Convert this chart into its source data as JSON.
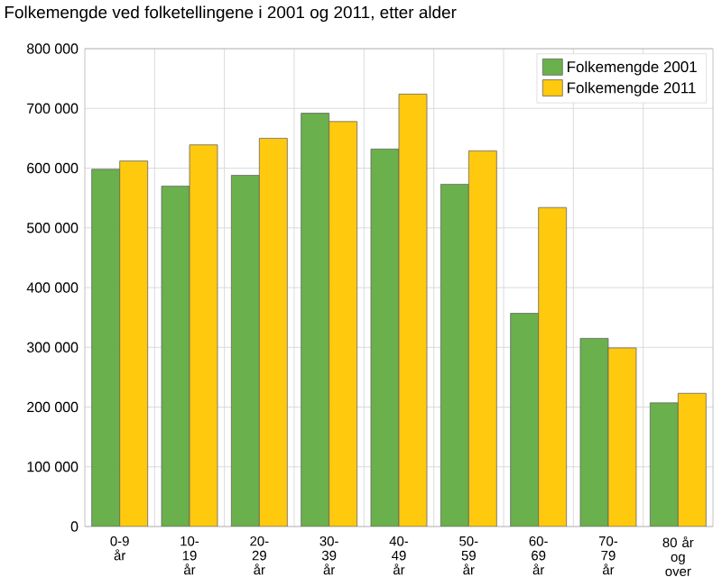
{
  "chart_data": {
    "type": "bar",
    "title": "Folkemengde ved folketellingene i 2001 og 2011, etter alder",
    "categories": [
      "0-9 år",
      "10-19 år",
      "20-29 år",
      "30-39 år",
      "40-49 år",
      "50-59 år",
      "60-69 år",
      "70-79 år",
      "80 år og over"
    ],
    "series": [
      {
        "name": "Folkemengde 2001",
        "color": "#6ab04c",
        "values": [
          598000,
          570000,
          588000,
          692000,
          632000,
          573000,
          357000,
          315000,
          207000
        ]
      },
      {
        "name": "Folkemengde 2011",
        "color": "#ffc90e",
        "values": [
          612000,
          639000,
          650000,
          678000,
          724000,
          629000,
          534000,
          299000,
          223000
        ]
      }
    ],
    "ylim": [
      0,
      800000
    ],
    "yticks": [
      {
        "value": 0,
        "label": "0"
      },
      {
        "value": 100000,
        "label": "100 000"
      },
      {
        "value": 200000,
        "label": "200 000"
      },
      {
        "value": 300000,
        "label": "300 000"
      },
      {
        "value": 400000,
        "label": "400 000"
      },
      {
        "value": 500000,
        "label": "500 000"
      },
      {
        "value": 600000,
        "label": "600 000"
      },
      {
        "value": 700000,
        "label": "700 000"
      },
      {
        "value": 800000,
        "label": "800 000"
      }
    ],
    "grid": true,
    "legend": "top right"
  }
}
